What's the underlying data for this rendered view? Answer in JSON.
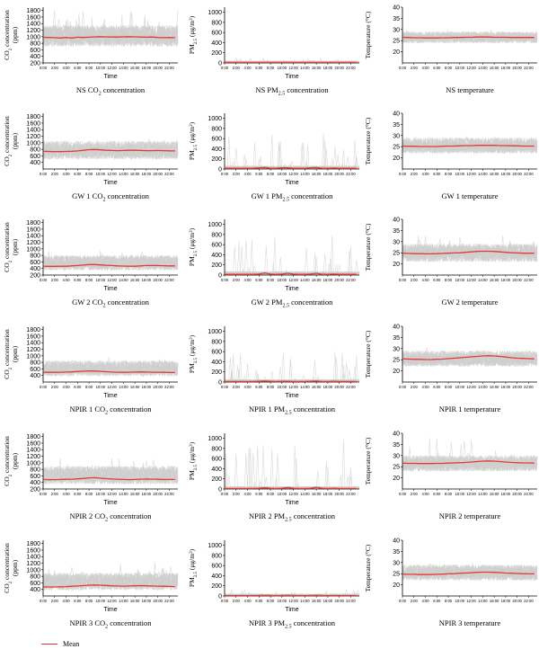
{
  "colors": {
    "mean": "#e53935",
    "trace": "#cfcfcf",
    "axis": "#000000"
  },
  "legend": {
    "mean_label": "Mean"
  },
  "chart_data": [
    {
      "type": "line",
      "row": 0,
      "col": 0,
      "title": "NS CO₂ concentration",
      "caption_segments": [
        "NS CO",
        "2",
        " concentration"
      ],
      "ylabel_segments": [
        "CO",
        "2",
        " concentration"
      ],
      "ylabel2": "(ppm)",
      "xlabel": "Time",
      "ylim": [
        200,
        1900
      ],
      "yticks": [
        200,
        400,
        600,
        800,
        1000,
        1200,
        1400,
        1600,
        1800
      ],
      "band": [
        700,
        1350
      ],
      "spike_max": 1850,
      "series": [
        {
          "name": "Mean",
          "values": [
            980,
            975,
            970,
            960,
            975,
            960,
            985,
            975,
            985,
            995,
            1000,
            995,
            990,
            990,
            995,
            1000,
            995,
            990,
            985,
            990,
            975,
            970,
            975,
            970
          ]
        }
      ]
    },
    {
      "type": "line",
      "row": 0,
      "col": 1,
      "title": "NS PM₂.₅ concentration",
      "caption_segments": [
        "NS PM",
        "2.5",
        " concentration"
      ],
      "ylabel_segments": [
        "PM",
        "2.5",
        " (μg/m",
        "3",
        ")"
      ],
      "ylabel2": "",
      "xlabel": "Time",
      "ylim": [
        0,
        1100
      ],
      "yticks": [
        0,
        200,
        400,
        600,
        800,
        1000
      ],
      "band": [
        0,
        40
      ],
      "spike_max": 100,
      "series": [
        {
          "name": "Mean",
          "values": [
            10,
            10,
            10,
            10,
            10,
            10,
            10,
            10,
            10,
            10,
            10,
            10,
            10,
            10,
            10,
            10,
            10,
            10,
            10,
            10,
            10,
            10,
            10,
            10
          ]
        }
      ]
    },
    {
      "type": "line",
      "row": 0,
      "col": 2,
      "title": "NS temperature",
      "caption_segments": [
        "NS temperature"
      ],
      "ylabel_segments": [
        "Temperature (°C)"
      ],
      "ylabel2": "",
      "xlabel": "",
      "ylim": [
        15,
        40
      ],
      "yticks": [
        20,
        25,
        30,
        35,
        40
      ],
      "band": [
        24,
        29
      ],
      "spike_max": 30,
      "series": [
        {
          "name": "Mean",
          "values": [
            26.5,
            26.4,
            26.3,
            26.3,
            26.2,
            26.2,
            26.2,
            26.3,
            26.3,
            26.4,
            26.4,
            26.5,
            26.5,
            26.6,
            26.6,
            26.6,
            26.5,
            26.5,
            26.5,
            26.4,
            26.4,
            26.4,
            26.4,
            26.4
          ]
        }
      ]
    },
    {
      "type": "line",
      "row": 1,
      "col": 0,
      "title": "GW 1 CO₂ concentration",
      "caption_segments": [
        "GW 1 CO",
        "2",
        " concentration"
      ],
      "ylabel_segments": [
        "CO",
        "2",
        " concentration"
      ],
      "ylabel2": "(ppm)",
      "xlabel": "Time",
      "ylim": [
        200,
        1900
      ],
      "yticks": [
        400,
        600,
        800,
        1000,
        1200,
        1400,
        1600,
        1800
      ],
      "band": [
        500,
        1050
      ],
      "spike_max": 1150,
      "series": [
        {
          "name": "Mean",
          "values": [
            740,
            735,
            730,
            730,
            735,
            740,
            750,
            770,
            790,
            795,
            785,
            770,
            765,
            760,
            765,
            770,
            770,
            765,
            760,
            760,
            765,
            760,
            755,
            750
          ]
        }
      ]
    },
    {
      "type": "line",
      "row": 1,
      "col": 1,
      "title": "GW 1 PM₂.₅ concentration",
      "caption_segments": [
        "GW 1 PM",
        "2.5",
        " concentration"
      ],
      "ylabel_segments": [
        "PM",
        "2.5",
        " (μg/m",
        "3",
        ")"
      ],
      "ylabel2": "",
      "xlabel": "Time",
      "ylim": [
        0,
        1100
      ],
      "yticks": [
        0,
        200,
        400,
        600,
        800,
        1000
      ],
      "band": [
        0,
        60
      ],
      "spike_max": 700,
      "series": [
        {
          "name": "Mean",
          "values": [
            15,
            15,
            15,
            15,
            15,
            15,
            25,
            30,
            15,
            15,
            25,
            25,
            15,
            15,
            15,
            25,
            30,
            15,
            15,
            20,
            15,
            15,
            15,
            15
          ]
        }
      ]
    },
    {
      "type": "line",
      "row": 1,
      "col": 2,
      "title": "GW 1 temperature",
      "caption_segments": [
        "GW 1 temperature"
      ],
      "ylabel_segments": [
        "Temperature (°C)"
      ],
      "ylabel2": "",
      "xlabel": "",
      "ylim": [
        15,
        40
      ],
      "yticks": [
        20,
        25,
        30,
        35,
        40
      ],
      "band": [
        22,
        29
      ],
      "spike_max": 30,
      "series": [
        {
          "name": "Mean",
          "values": [
            25.3,
            25.2,
            25.2,
            25.1,
            25.1,
            25.1,
            25.1,
            25.2,
            25.3,
            25.3,
            25.4,
            25.5,
            25.5,
            25.6,
            25.6,
            25.6,
            25.6,
            25.5,
            25.5,
            25.4,
            25.4,
            25.3,
            25.3,
            25.3
          ]
        }
      ]
    },
    {
      "type": "line",
      "row": 2,
      "col": 0,
      "title": "GW 2 CO₂ concentration",
      "caption_segments": [
        "GW 2 CO",
        "2",
        " concentration"
      ],
      "ylabel_segments": [
        "CO",
        "2",
        " concentration"
      ],
      "ylabel2": "(ppm)",
      "xlabel": "Time",
      "ylim": [
        200,
        1900
      ],
      "yticks": [
        200,
        400,
        600,
        800,
        1000,
        1200,
        1400,
        1600,
        1800
      ],
      "band": [
        350,
        800
      ],
      "spike_max": 950,
      "series": [
        {
          "name": "Mean",
          "values": [
            470,
            465,
            465,
            470,
            470,
            480,
            490,
            505,
            520,
            520,
            510,
            500,
            490,
            480,
            475,
            470,
            470,
            480,
            490,
            490,
            490,
            485,
            480,
            480
          ]
        }
      ]
    },
    {
      "type": "line",
      "row": 2,
      "col": 1,
      "title": "GW 2 PM₂.₅ concentration",
      "caption_segments": [
        "GW 2 PM",
        "2.5",
        " concentration"
      ],
      "ylabel_segments": [
        "PM",
        "2.5",
        " (μg/m",
        "3",
        ")"
      ],
      "ylabel2": "",
      "xlabel": "Time",
      "ylim": [
        0,
        1100
      ],
      "yticks": [
        0,
        200,
        400,
        600,
        800,
        1000
      ],
      "band": [
        0,
        70
      ],
      "spike_max": 850,
      "series": [
        {
          "name": "Mean",
          "values": [
            15,
            15,
            15,
            15,
            15,
            15,
            20,
            40,
            20,
            15,
            20,
            35,
            20,
            15,
            15,
            20,
            35,
            15,
            15,
            20,
            15,
            15,
            15,
            15
          ]
        }
      ]
    },
    {
      "type": "line",
      "row": 2,
      "col": 2,
      "title": "GW 2 temperature",
      "caption_segments": [
        "GW 2 temperature"
      ],
      "ylabel_segments": [
        "Temperature (°C)"
      ],
      "ylabel2": "",
      "xlabel": "",
      "ylim": [
        15,
        40
      ],
      "yticks": [
        20,
        25,
        30,
        35,
        40
      ],
      "band": [
        21,
        29
      ],
      "spike_max": 33,
      "series": [
        {
          "name": "Mean",
          "values": [
            24.8,
            24.7,
            24.6,
            24.6,
            24.5,
            24.5,
            24.6,
            24.7,
            24.8,
            24.9,
            25.0,
            25.2,
            25.4,
            25.6,
            25.7,
            25.7,
            25.6,
            25.4,
            25.2,
            25.0,
            24.9,
            24.8,
            24.8,
            24.8
          ]
        }
      ]
    },
    {
      "type": "line",
      "row": 3,
      "col": 0,
      "title": "NPIR 1 CO₂ concentration",
      "caption_segments": [
        "NPIR 1 CO",
        "2",
        " concentration"
      ],
      "ylabel_segments": [
        "CO",
        "2",
        " concentration"
      ],
      "ylabel2": "(ppm)",
      "xlabel": "Time",
      "ylim": [
        200,
        1900
      ],
      "yticks": [
        400,
        600,
        800,
        1000,
        1200,
        1400,
        1600,
        1800
      ],
      "band": [
        380,
        850
      ],
      "spike_max": 1000,
      "series": [
        {
          "name": "Mean",
          "values": [
            500,
            495,
            495,
            500,
            505,
            510,
            520,
            530,
            540,
            535,
            525,
            515,
            505,
            500,
            495,
            500,
            505,
            510,
            505,
            500,
            500,
            495,
            490,
            490
          ]
        }
      ]
    },
    {
      "type": "line",
      "row": 3,
      "col": 1,
      "title": "NPIR 1 PM₂.₅ concentration",
      "caption_segments": [
        "NPIR 1 PM",
        "2.5",
        " concentration"
      ],
      "ylabel_segments": [
        "PM",
        "2.5",
        " (μg/m",
        "3",
        ")"
      ],
      "ylabel2": "",
      "xlabel": "Time",
      "ylim": [
        0,
        1100
      ],
      "yticks": [
        0,
        200,
        400,
        600,
        800,
        1000
      ],
      "band": [
        0,
        50
      ],
      "spike_max": 600,
      "series": [
        {
          "name": "Mean",
          "values": [
            10,
            10,
            10,
            10,
            10,
            10,
            15,
            20,
            15,
            10,
            15,
            15,
            10,
            10,
            10,
            15,
            20,
            10,
            10,
            15,
            10,
            10,
            10,
            10
          ]
        }
      ]
    },
    {
      "type": "line",
      "row": 3,
      "col": 2,
      "title": "NPIR 1 temperature",
      "caption_segments": [
        "NPIR 1 temperature"
      ],
      "ylabel_segments": [
        "Temperature (°C)"
      ],
      "ylabel2": "",
      "xlabel": "",
      "ylim": [
        15,
        40
      ],
      "yticks": [
        20,
        25,
        30,
        35,
        40
      ],
      "band": [
        22,
        29
      ],
      "spike_max": 31,
      "series": [
        {
          "name": "Mean",
          "values": [
            25.4,
            25.3,
            25.2,
            25.2,
            25.1,
            25.1,
            25.2,
            25.3,
            25.5,
            25.7,
            25.9,
            26.1,
            26.3,
            26.5,
            26.7,
            26.8,
            26.7,
            26.5,
            26.2,
            25.9,
            25.7,
            25.6,
            25.5,
            25.4
          ]
        }
      ]
    },
    {
      "type": "line",
      "row": 4,
      "col": 0,
      "title": "NPIR 2 CO₂ concentration",
      "caption_segments": [
        "NPIR 2 CO",
        "2",
        " concentration"
      ],
      "ylabel_segments": [
        "CO",
        "2",
        " concentration"
      ],
      "ylabel2": "(ppm)",
      "xlabel": "Time",
      "ylim": [
        200,
        1900
      ],
      "yticks": [
        200,
        400,
        600,
        800,
        1000,
        1200,
        1400,
        1600,
        1800
      ],
      "band": [
        350,
        900
      ],
      "spike_max": 1150,
      "series": [
        {
          "name": "Mean",
          "values": [
            490,
            485,
            485,
            490,
            495,
            500,
            510,
            520,
            540,
            545,
            530,
            515,
            505,
            500,
            490,
            485,
            490,
            500,
            505,
            500,
            495,
            490,
            490,
            490
          ]
        }
      ]
    },
    {
      "type": "line",
      "row": 4,
      "col": 1,
      "title": "NPIR 2 PM₂.₅ concentration",
      "caption_segments": [
        "NPIR 2 PM",
        "2.5",
        " concentration"
      ],
      "ylabel_segments": [
        "PM",
        "2.5",
        " (μg/m",
        "3",
        ")"
      ],
      "ylabel2": "",
      "xlabel": "Time",
      "ylim": [
        0,
        1100
      ],
      "yticks": [
        0,
        200,
        400,
        600,
        800,
        1000
      ],
      "band": [
        0,
        50
      ],
      "spike_max": 1050,
      "series": [
        {
          "name": "Mean",
          "values": [
            10,
            10,
            10,
            10,
            10,
            10,
            15,
            25,
            15,
            10,
            15,
            30,
            15,
            10,
            10,
            15,
            35,
            15,
            10,
            15,
            10,
            10,
            10,
            10
          ]
        }
      ]
    },
    {
      "type": "line",
      "row": 4,
      "col": 2,
      "title": "NPIR 2 temperature",
      "caption_segments": [
        "NPIR 2 temperature"
      ],
      "ylabel_segments": [
        "Temperature (°C)"
      ],
      "ylabel2": "",
      "xlabel": "",
      "ylim": [
        15,
        40
      ],
      "yticks": [
        20,
        25,
        30,
        35,
        40
      ],
      "band": [
        23,
        30
      ],
      "spike_max": 38,
      "series": [
        {
          "name": "Mean",
          "values": [
            26.6,
            26.5,
            26.5,
            26.4,
            26.4,
            26.4,
            26.5,
            26.5,
            26.6,
            26.7,
            26.8,
            26.9,
            27.1,
            27.3,
            27.5,
            27.6,
            27.5,
            27.3,
            27.1,
            26.9,
            26.8,
            26.7,
            26.7,
            26.6
          ]
        }
      ]
    },
    {
      "type": "line",
      "row": 5,
      "col": 0,
      "title": "NPIR 3 CO₂ concentration",
      "caption_segments": [
        "NPIR 3 CO",
        "2",
        " concentration"
      ],
      "ylabel_segments": [
        "CO",
        "2",
        " concentration"
      ],
      "ylabel2": "(ppm)",
      "xlabel": "Time",
      "ylim": [
        200,
        1900
      ],
      "yticks": [
        400,
        600,
        800,
        1000,
        1200,
        1400,
        1600,
        1800
      ],
      "band": [
        380,
        900
      ],
      "spike_max": 1250,
      "series": [
        {
          "name": "Mean",
          "values": [
            480,
            475,
            475,
            480,
            485,
            495,
            505,
            515,
            530,
            535,
            530,
            520,
            510,
            505,
            500,
            505,
            510,
            515,
            510,
            505,
            500,
            495,
            490,
            485
          ]
        }
      ]
    },
    {
      "type": "line",
      "row": 5,
      "col": 1,
      "title": "NPIR 3 PM₂.₅ concentration",
      "caption_segments": [
        "NPIR 3 PM",
        "2.5",
        " concentration"
      ],
      "ylabel_segments": [
        "PM",
        "2.5",
        " (μg/m",
        "3",
        ")"
      ],
      "ylabel2": "",
      "xlabel": "Time",
      "ylim": [
        0,
        1100
      ],
      "yticks": [
        0,
        200,
        400,
        600,
        800,
        1000
      ],
      "band": [
        0,
        40
      ],
      "spike_max": 130,
      "series": [
        {
          "name": "Mean",
          "values": [
            8,
            8,
            8,
            8,
            8,
            8,
            10,
            12,
            10,
            8,
            10,
            12,
            10,
            8,
            8,
            10,
            12,
            10,
            8,
            10,
            8,
            8,
            8,
            8
          ]
        }
      ]
    },
    {
      "type": "line",
      "row": 5,
      "col": 2,
      "title": "NPIR 3 temperature",
      "caption_segments": [
        "NPIR 3 temperature"
      ],
      "ylabel_segments": [
        "Temperature (°C)"
      ],
      "ylabel2": "",
      "xlabel": "",
      "ylim": [
        15,
        40
      ],
      "yticks": [
        20,
        25,
        30,
        35,
        40
      ],
      "band": [
        22,
        29
      ],
      "spike_max": 30,
      "series": [
        {
          "name": "Mean",
          "values": [
            24.8,
            24.7,
            24.7,
            24.6,
            24.6,
            24.6,
            24.7,
            24.8,
            24.9,
            25.0,
            25.2,
            25.3,
            25.4,
            25.6,
            25.7,
            25.7,
            25.6,
            25.5,
            25.3,
            25.2,
            25.1,
            25.0,
            24.9,
            24.9
          ]
        }
      ]
    }
  ],
  "x_tick_labels": [
    "0:00",
    "2:00",
    "4:00",
    "6:00",
    "8:00",
    "10:00",
    "12:00",
    "14:00",
    "16:00",
    "18:00",
    "20:00",
    "22:00"
  ]
}
